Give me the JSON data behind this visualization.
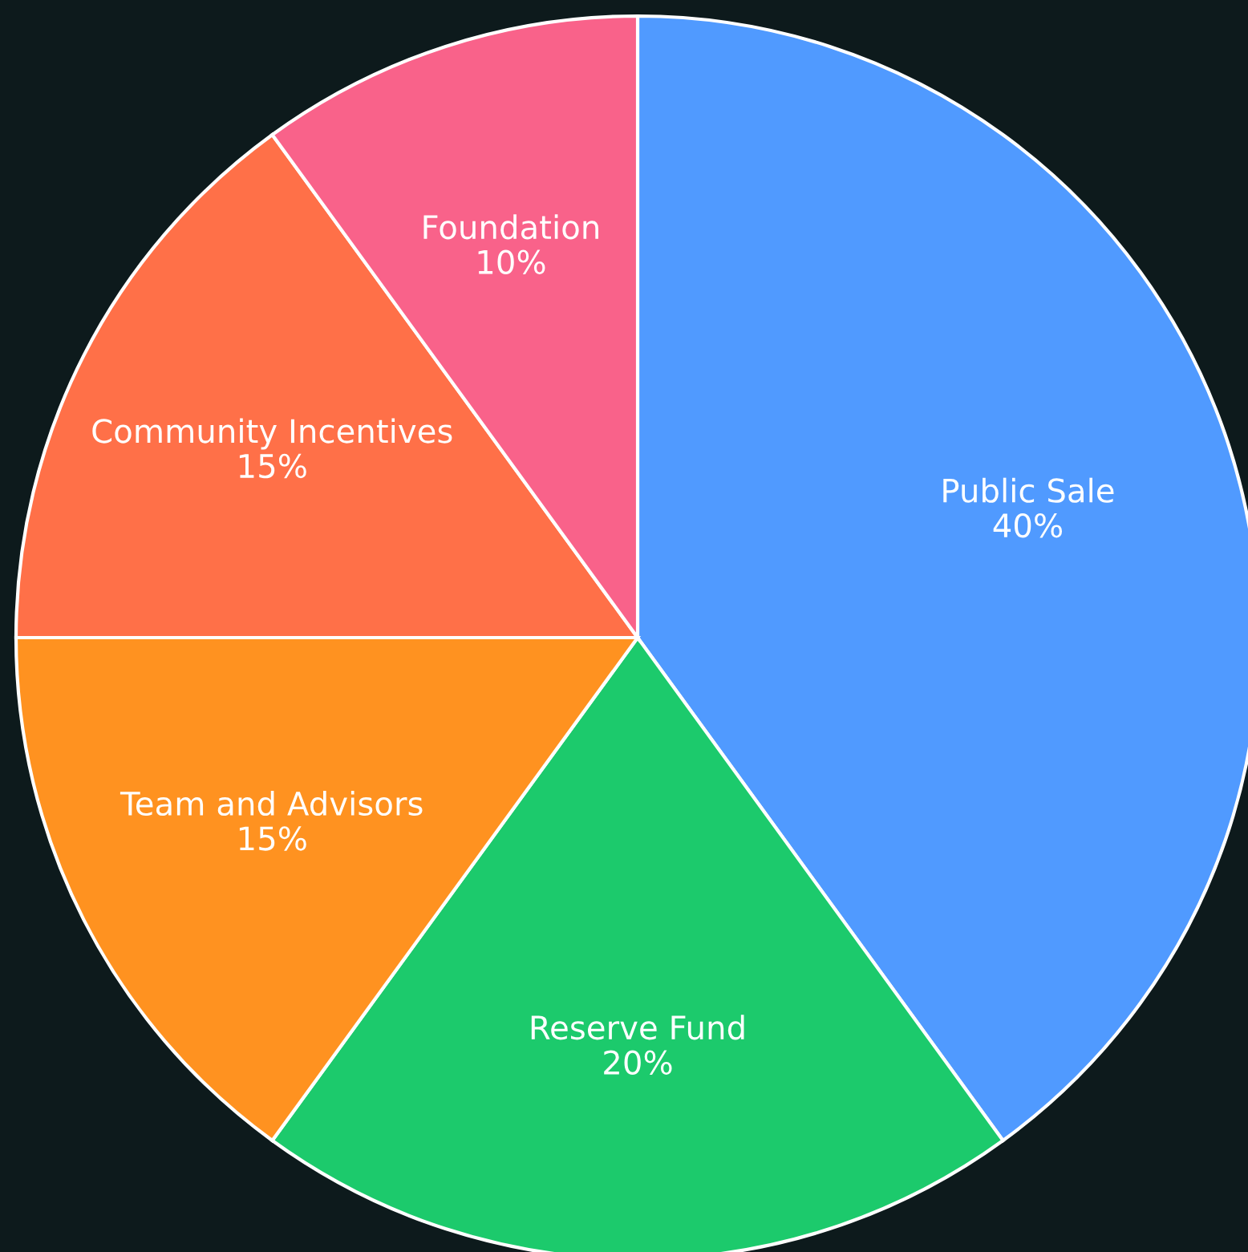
{
  "chart_data": {
    "type": "pie",
    "categories": [
      "Public Sale",
      "Reserve Fund",
      "Team and Advisors",
      "Community Incentives",
      "Foundation"
    ],
    "values": [
      40,
      20,
      15,
      15,
      10
    ],
    "colors": [
      "#509aff",
      "#1cca6c",
      "#ff9220",
      "#ff7048",
      "#f9628a"
    ],
    "value_labels": [
      "40%",
      "20%",
      "15%",
      "15%",
      "10%"
    ]
  }
}
